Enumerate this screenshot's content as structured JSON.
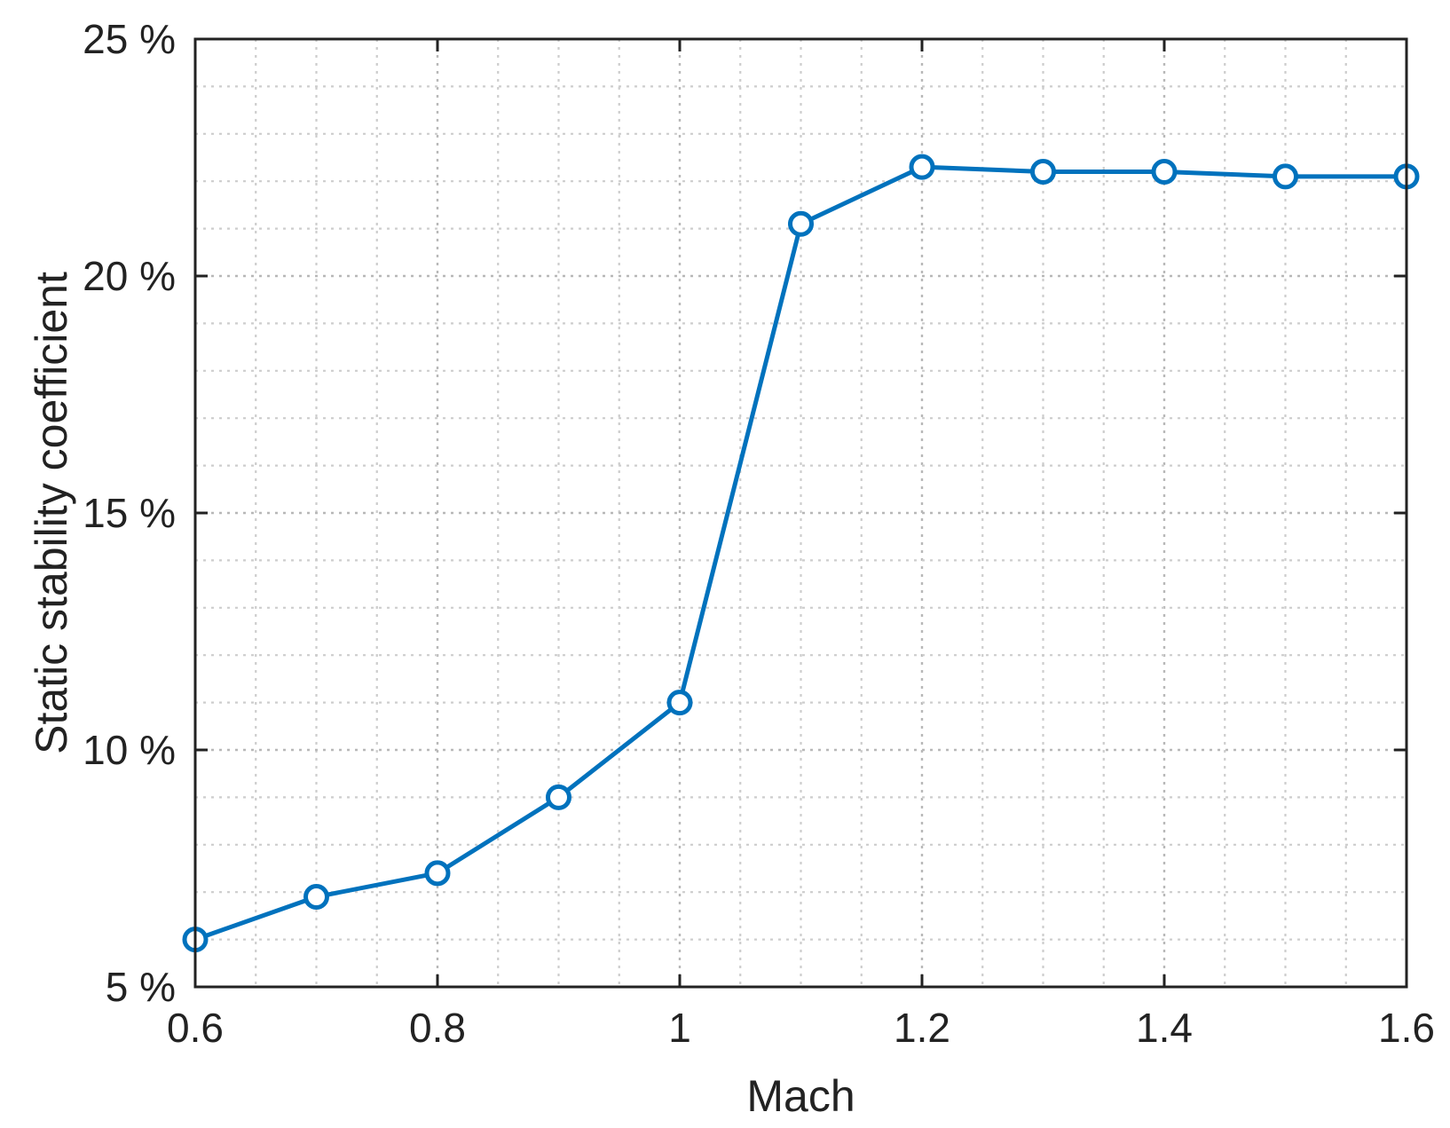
{
  "chart_data": {
    "type": "line",
    "xlabel": "Mach",
    "ylabel": "Static stability coefficient",
    "xlim": [
      0.6,
      1.6
    ],
    "ylim": [
      5,
      25
    ],
    "x_ticks": [
      0.6,
      0.8,
      1.0,
      1.2,
      1.4,
      1.6
    ],
    "x_tick_labels": [
      "0.6",
      "0.8",
      "1",
      "1.2",
      "1.4",
      "1.6"
    ],
    "x_minor_step": 0.05,
    "y_ticks": [
      5,
      10,
      15,
      20,
      25
    ],
    "y_tick_labels": [
      "5 %",
      "10 %",
      "15 %",
      "20 %",
      "25 %"
    ],
    "y_minor_step": 1,
    "grid": "on, dotted, major and minor",
    "legend": "none",
    "series": [
      {
        "color": "#0072bd",
        "marker": "open-circle",
        "x": [
          0.6,
          0.7,
          0.8,
          0.9,
          1.0,
          1.1,
          1.2,
          1.3,
          1.4,
          1.5,
          1.6
        ],
        "y": [
          6.0,
          6.9,
          7.4,
          9.0,
          11.0,
          21.1,
          22.3,
          22.2,
          22.2,
          22.1,
          22.1
        ]
      }
    ]
  }
}
